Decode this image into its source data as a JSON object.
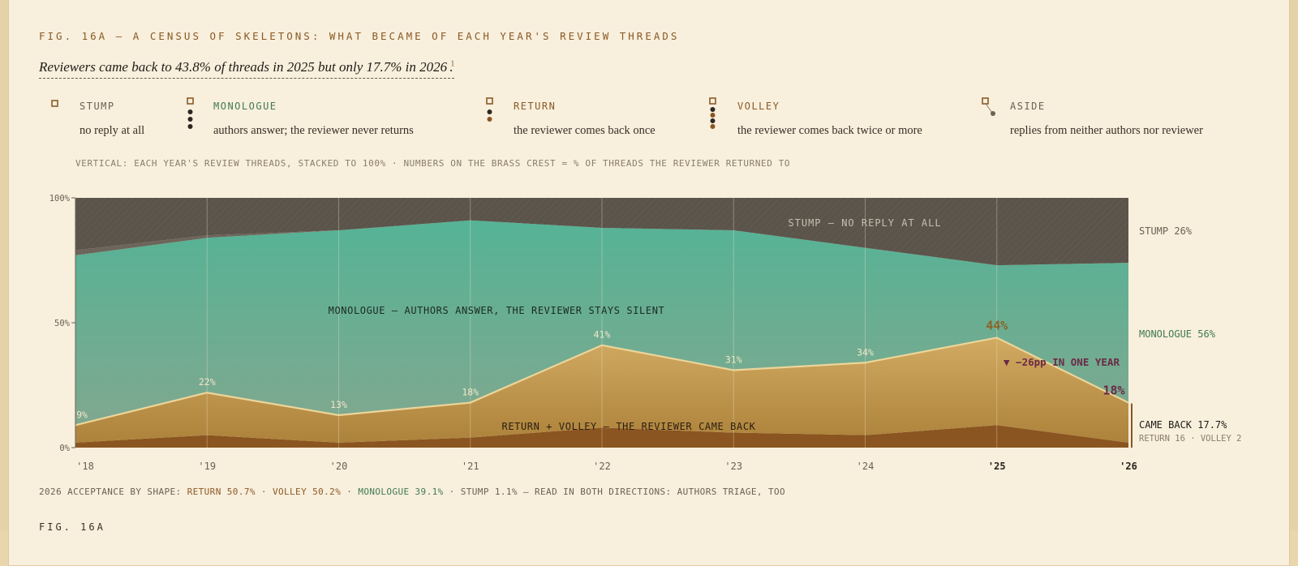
{
  "figure": {
    "title": "FIG. 16A — A CENSUS OF SKELETONS: WHAT BECAME OF EACH YEAR'S REVIEW THREADS",
    "headline": "Reviewers came back to 43.8% of threads in 2025 but only 17.7% in 2026",
    "headline_note": "1",
    "headline_end": ".",
    "caption": "VERTICAL: EACH YEAR'S REVIEW THREADS, STACKED TO 100% · NUMBERS ON THE BRASS CREST = % OF THREADS THE REVIEWER RETURNED TO",
    "fig_label_bottom": "FIG. 16A"
  },
  "legend": [
    {
      "name": "STUMP",
      "desc": "no reply at all",
      "color": "#6b6154",
      "icon": "hollow-square-icon"
    },
    {
      "name": "MONOLOGUE",
      "desc": "authors answer; the reviewer never returns",
      "color": "#3f7a4e",
      "icon": "thread-dots-icon"
    },
    {
      "name": "RETURN",
      "desc": "the reviewer comes back once",
      "color": "#8a5a25",
      "icon": "return-dots-icon"
    },
    {
      "name": "VOLLEY",
      "desc": "the reviewer comes back twice or more",
      "color": "#8a5a25",
      "icon": "volley-dots-icon"
    },
    {
      "name": "ASIDE",
      "desc": "replies from neither authors nor reviewer",
      "color": "#6b6154",
      "icon": "aside-branch-icon"
    }
  ],
  "chart_data": {
    "type": "area",
    "stacked_to": 100,
    "categories": [
      "'18",
      "'19",
      "'20",
      "'21",
      "'22",
      "'23",
      "'24",
      "'25",
      "'26"
    ],
    "y_ticks": [
      "0%",
      "50%",
      "100%"
    ],
    "ylim": [
      0,
      100
    ],
    "series": [
      {
        "name": "VOLLEY",
        "values": [
          2,
          5,
          2,
          4,
          8,
          6,
          5,
          9,
          2
        ],
        "color": "#8a5520"
      },
      {
        "name": "RETURN",
        "values": [
          7,
          17,
          11,
          14,
          33,
          25,
          29,
          35,
          16
        ],
        "color": "#c9a35a"
      },
      {
        "name": "MONOLOGUE",
        "values": [
          68,
          62,
          74,
          73,
          47,
          56,
          46,
          29,
          56
        ],
        "color": "#5bb196"
      },
      {
        "name": "ASIDE",
        "values": [
          2,
          1,
          0,
          0,
          0,
          0,
          0,
          0,
          0
        ],
        "color": "#6d655b"
      },
      {
        "name": "STUMP",
        "values": [
          21,
          15,
          13,
          9,
          12,
          13,
          20,
          27,
          26
        ],
        "color": "#5b544b"
      }
    ],
    "crest_labels": [
      "9%",
      "22%",
      "13%",
      "18%",
      "41%",
      "31%",
      "34%",
      "44%",
      "18%"
    ],
    "region_labels": {
      "stump": "STUMP — NO REPLY AT ALL",
      "monologue": "MONOLOGUE — AUTHORS ANSWER, THE REVIEWER STAYS SILENT",
      "came_back": "RETURN + VOLLEY — THE REVIEWER CAME BACK"
    },
    "annotation": "▼ −26pp IN ONE YEAR",
    "right_labels": {
      "stump": "STUMP 26%",
      "monologue": "MONOLOGUE 56%",
      "came_back": "CAME BACK 17.7%",
      "came_back_detail": "RETURN 16 · VOLLEY 2"
    },
    "colors": {
      "brass": "#c9a35a",
      "teal": "#5bb196",
      "stump": "#5b544b",
      "plum": "#6b2a45",
      "dark_brass": "#8a5520"
    }
  },
  "footer": {
    "prefix": "2026 ACCEPTANCE BY SHAPE: ",
    "return": "RETURN 50.7%",
    "sep1": " · ",
    "volley": "VOLLEY 50.2%",
    "sep2": " · ",
    "monologue": "MONOLOGUE 39.1%",
    "rest": " · STUMP 1.1% — READ IN BOTH DIRECTIONS: AUTHORS TRIAGE, TOO"
  }
}
